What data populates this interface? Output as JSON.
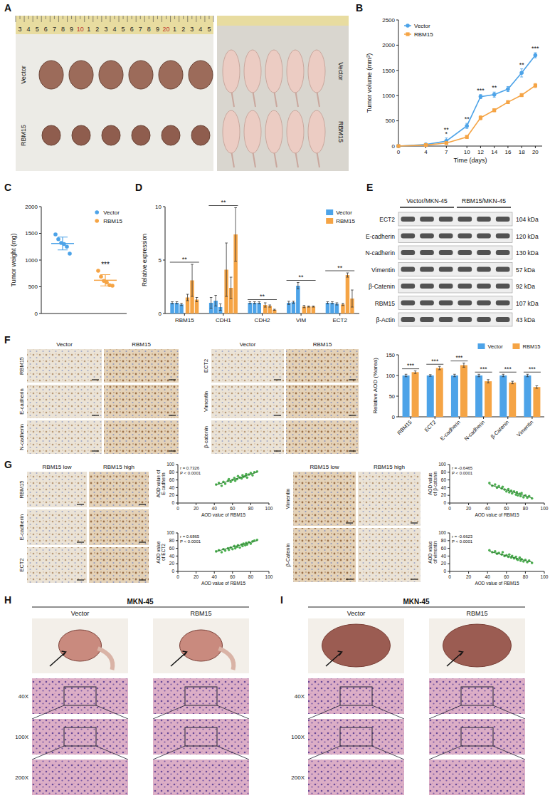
{
  "figure": {
    "A": {
      "letter": "A",
      "ruler": [
        "3",
        "4",
        "5",
        "6",
        "7",
        "8",
        "9",
        "10",
        "1",
        "2",
        "3",
        "4",
        "5",
        "6",
        "7",
        "8",
        "9",
        "20",
        "1",
        "2",
        "3",
        "4",
        "5"
      ],
      "left_photo_labels": [
        "Vector",
        "RBM15"
      ],
      "right_photo_labels": [
        "Vector",
        "RBM15"
      ]
    },
    "E": {
      "letter": "E",
      "groups": [
        "Vector/MKN-45",
        "RBM15/MKN-45"
      ],
      "proteins": [
        {
          "name": "ECT2",
          "size": "104 kDa"
        },
        {
          "name": "E-cadherin",
          "size": "120 kDa"
        },
        {
          "name": "N-cadherin",
          "size": "130 kDa"
        },
        {
          "name": "Vimentin",
          "size": "57 kDa"
        },
        {
          "name": "β-Catenin",
          "size": "92 kDa"
        },
        {
          "name": "RBM15",
          "size": "107 kDa"
        },
        {
          "name": "β-Actin",
          "size": "43 kDa"
        }
      ]
    },
    "F": {
      "letter": "F",
      "groups": [
        {
          "columns": [
            "Vector",
            "RBM15"
          ],
          "rows": [
            "RBM15",
            "E-cadherin",
            "N-cadherin"
          ]
        },
        {
          "columns": [
            "Vector",
            "RBM15"
          ],
          "rows": [
            "ECT2",
            "Vimentin",
            "β-catenin"
          ]
        }
      ]
    },
    "G": {
      "letter": "G",
      "groups": [
        {
          "columns": [
            "RBM15 low",
            "RBM15 high"
          ],
          "rows": [
            "RBM15",
            "E-cadherin",
            "ECT2"
          ]
        },
        {
          "columns": [
            "RBM15 low",
            "RBM15 high"
          ],
          "rows": [
            "Vimentin",
            "β-Catenin"
          ]
        }
      ]
    },
    "H": {
      "letter": "H",
      "cell_line": "MKN-45",
      "columns": [
        "Vector",
        "RBM15"
      ],
      "magnifications": [
        "40X",
        "100X",
        "200X"
      ]
    },
    "I": {
      "letter": "I",
      "cell_line": "MKN-45",
      "columns": [
        "Vector",
        "RBM15"
      ],
      "magnifications": [
        "40X",
        "100X",
        "200X"
      ]
    }
  },
  "chart_data": [
    {
      "panel": "B",
      "type": "line",
      "x_label": "Time (days)",
      "y_label": "Tumor volume (mm³)",
      "x": [
        0,
        4,
        7,
        10,
        12,
        14,
        16,
        18,
        20
      ],
      "xlim": [
        0,
        21
      ],
      "xticks": [
        0,
        4,
        7,
        10,
        12,
        14,
        16,
        18,
        20
      ],
      "ylim": [
        0,
        2500
      ],
      "yticks": [
        0,
        500,
        1000,
        1500,
        2000,
        2500
      ],
      "legend": "upper left",
      "series": [
        {
          "name": "Vector",
          "color": "#4da3e8",
          "marker": "circle",
          "values": [
            0,
            30,
            100,
            400,
            980,
            1020,
            1130,
            1450,
            1800
          ],
          "errors": [
            0,
            10,
            60,
            50,
            40,
            50,
            50,
            80,
            50
          ]
        },
        {
          "name": "RBM15",
          "color": "#f5a445",
          "marker": "square",
          "values": [
            0,
            20,
            60,
            180,
            560,
            710,
            870,
            1010,
            1200
          ],
          "errors": [
            0,
            5,
            20,
            30,
            40,
            30,
            30,
            30,
            40
          ]
        }
      ],
      "annotations": [
        {
          "x": 7,
          "text": "*"
        },
        {
          "x": 7,
          "text": "**"
        },
        {
          "x": 10,
          "text": "**"
        },
        {
          "x": 12,
          "text": "***"
        },
        {
          "x": 14,
          "text": "**"
        },
        {
          "x": 18,
          "text": "**"
        },
        {
          "x": 20,
          "text": "***"
        }
      ]
    },
    {
      "panel": "C",
      "type": "scatter",
      "y_label": "Tumor weight (mg)",
      "ylim": [
        0,
        2000
      ],
      "yticks": [
        0,
        500,
        1000,
        1500,
        2000
      ],
      "tick_labels": "y",
      "legend": "upper right",
      "series": [
        {
          "name": "Vector",
          "color": "#4da3e8",
          "values": [
            1480,
            1390,
            1320,
            1300,
            1250,
            1120
          ],
          "mean": 1310,
          "sd": 120
        },
        {
          "name": "RBM15",
          "color": "#f5a445",
          "values": [
            800,
            690,
            610,
            580,
            530,
            520
          ],
          "mean": 622,
          "sd": 105
        }
      ],
      "annotations": [
        {
          "target": "RBM15",
          "text": "***"
        }
      ]
    },
    {
      "panel": "D",
      "type": "bar",
      "y_label": "Relative expression",
      "categories": [
        "RBM15",
        "CDH1",
        "CDH2",
        "VIM",
        "ECT2"
      ],
      "ylim": [
        0,
        10
      ],
      "yticks": [
        0,
        5,
        10
      ],
      "legend": "upper right",
      "series": [
        {
          "name": "Vector",
          "color": "#4da3e8",
          "values": [
            [
              1.0,
              1.0,
              0.85
            ],
            [
              1.0,
              1.2,
              0.6
            ],
            [
              1.0,
              1.0,
              1.0
            ],
            [
              1.0,
              1.05,
              2.6
            ],
            [
              1.0,
              1.0,
              0.9
            ]
          ],
          "errors": [
            [
              0.1,
              0.1,
              0.1
            ],
            [
              0.5,
              0.5,
              0.3
            ],
            [
              0.1,
              0.1,
              0.1
            ],
            [
              0.15,
              0.1,
              0.3
            ],
            [
              0.1,
              0.1,
              0.1
            ]
          ]
        },
        {
          "name": "RBM15",
          "color": "#f5a445",
          "values": [
            [
              1.5,
              3.1,
              1.3
            ],
            [
              4.1,
              2.4,
              7.4
            ],
            [
              0.8,
              0.7,
              0.35
            ],
            [
              0.65,
              0.65,
              0.65
            ],
            [
              0.85,
              3.6,
              1.4
            ]
          ],
          "errors": [
            [
              0.3,
              1.5,
              0.2
            ],
            [
              2.5,
              1.0,
              2.5
            ],
            [
              0.2,
              0.1,
              0.05
            ],
            [
              0.1,
              0.05,
              0.05
            ],
            [
              0.1,
              0.2,
              0.8
            ]
          ]
        }
      ],
      "annotations": [
        {
          "category": "RBM15",
          "text": "**"
        },
        {
          "category": "CDH1",
          "text": "**"
        },
        {
          "category": "CDH2",
          "text": "**"
        },
        {
          "category": "VIM",
          "text": "**"
        },
        {
          "category": "ECT2",
          "text": "**"
        }
      ]
    },
    {
      "type": "bar",
      "y_label": "Relative AOD (%area)",
      "categories": [
        "RBM15",
        "ECT2",
        "E-cadherin",
        "N-cadherin",
        "β-Catenin",
        "Vimentin"
      ],
      "ylim": [
        0,
        150
      ],
      "yticks": [
        0,
        50,
        100,
        150
      ],
      "legend": "top",
      "series": [
        {
          "name": "Vector",
          "color": "#4da3e8",
          "values": [
            100,
            100,
            100,
            100,
            100,
            100
          ],
          "errors": [
            3,
            2,
            3,
            3,
            3,
            3
          ]
        },
        {
          "name": "RBM15",
          "color": "#f5a445",
          "values": [
            108,
            118,
            125,
            86,
            83,
            72
          ],
          "errors": [
            3,
            4,
            5,
            4,
            3,
            3
          ]
        }
      ],
      "annotations": [
        {
          "category": "RBM15",
          "text": "***"
        },
        {
          "category": "ECT2",
          "text": "***"
        },
        {
          "category": "E-cadherin",
          "text": "***"
        },
        {
          "category": "N-cadherin",
          "text": "***"
        },
        {
          "category": "β-Catenin",
          "text": "***"
        },
        {
          "category": "Vimentin",
          "text": "***"
        }
      ]
    },
    {
      "type": "scatter",
      "x_label": "AOD value of RBM15",
      "y_label": "AOD value of E-cadherin",
      "xlim": [
        0,
        100
      ],
      "xticks": [
        0,
        20,
        40,
        60,
        80,
        100
      ],
      "ylim": [
        0,
        100
      ],
      "yticks": [
        0,
        20,
        40,
        60,
        80,
        100
      ],
      "color": "#4caf50",
      "x": [
        42,
        45,
        48,
        50,
        52,
        55,
        56,
        58,
        60,
        62,
        63,
        65,
        66,
        68,
        70,
        71,
        72,
        74,
        75,
        76,
        78,
        80,
        82,
        84,
        87
      ],
      "values": [
        48,
        52,
        45,
        55,
        50,
        58,
        62,
        55,
        60,
        65,
        58,
        62,
        70,
        66,
        64,
        72,
        68,
        70,
        75,
        66,
        74,
        78,
        72,
        80,
        82
      ],
      "trend_line": {
        "x": [
          42,
          87
        ],
        "values": [
          47,
          80
        ]
      },
      "annotations": [
        "r = 0.7326",
        "P < 0.0001"
      ]
    },
    {
      "type": "scatter",
      "x_label": "AOD value of RBM15",
      "y_label": "AOD value of ECT2",
      "xlim": [
        0,
        100
      ],
      "xticks": [
        0,
        20,
        40,
        60,
        80,
        100
      ],
      "ylim": [
        0,
        100
      ],
      "yticks": [
        0,
        20,
        40,
        60,
        80,
        100
      ],
      "color": "#4caf50",
      "x": [
        42,
        45,
        48,
        50,
        52,
        55,
        56,
        58,
        60,
        62,
        63,
        65,
        66,
        68,
        70,
        71,
        72,
        74,
        75,
        76,
        78,
        80,
        82,
        84,
        87
      ],
      "values": [
        52,
        55,
        50,
        58,
        54,
        60,
        56,
        62,
        58,
        66,
        60,
        64,
        68,
        62,
        70,
        66,
        72,
        68,
        74,
        70,
        76,
        72,
        78,
        80,
        82
      ],
      "trend_line": {
        "x": [
          42,
          87
        ],
        "values": [
          52,
          80
        ]
      },
      "annotations": [
        "r = 0.6865",
        "P < 0.0001"
      ]
    },
    {
      "type": "scatter",
      "x_label": "AOD value of RBM15",
      "y_label": "AOD value of β-catenin",
      "xlim": [
        0,
        100
      ],
      "xticks": [
        0,
        20,
        40,
        60,
        80,
        100
      ],
      "ylim": [
        0,
        100
      ],
      "yticks": [
        0,
        20,
        40,
        60,
        80,
        100
      ],
      "color": "#4caf50",
      "x": [
        42,
        45,
        48,
        50,
        52,
        55,
        56,
        58,
        60,
        62,
        63,
        65,
        66,
        68,
        70,
        71,
        72,
        74,
        75,
        76,
        78,
        80,
        82,
        84,
        87
      ],
      "values": [
        52,
        45,
        48,
        40,
        44,
        38,
        42,
        35,
        30,
        36,
        28,
        32,
        25,
        30,
        22,
        28,
        20,
        24,
        18,
        26,
        15,
        20,
        14,
        18,
        12
      ],
      "trend_line": {
        "x": [
          42,
          87
        ],
        "values": [
          48,
          13
        ]
      },
      "annotations": [
        "r = -0.6465",
        "P < 0.0001"
      ]
    },
    {
      "type": "scatter",
      "x_label": "AOD value of RBM15",
      "y_label": "AOD value of vimentin",
      "xlim": [
        0,
        100
      ],
      "xticks": [
        0,
        20,
        40,
        60,
        80,
        100
      ],
      "ylim": [
        0,
        100
      ],
      "yticks": [
        0,
        20,
        40,
        60,
        80,
        100
      ],
      "color": "#4caf50",
      "x": [
        42,
        45,
        48,
        50,
        52,
        55,
        56,
        58,
        60,
        62,
        63,
        65,
        66,
        68,
        70,
        71,
        72,
        74,
        75,
        76,
        78,
        80,
        82,
        84,
        87
      ],
      "values": [
        55,
        50,
        52,
        46,
        48,
        44,
        50,
        40,
        42,
        38,
        44,
        36,
        40,
        34,
        38,
        32,
        30,
        36,
        28,
        32,
        26,
        30,
        24,
        28,
        22
      ],
      "trend_line": {
        "x": [
          42,
          87
        ],
        "values": [
          52,
          24
        ]
      },
      "annotations": [
        "r = -0.6623",
        "P < 0.0001"
      ]
    }
  ]
}
